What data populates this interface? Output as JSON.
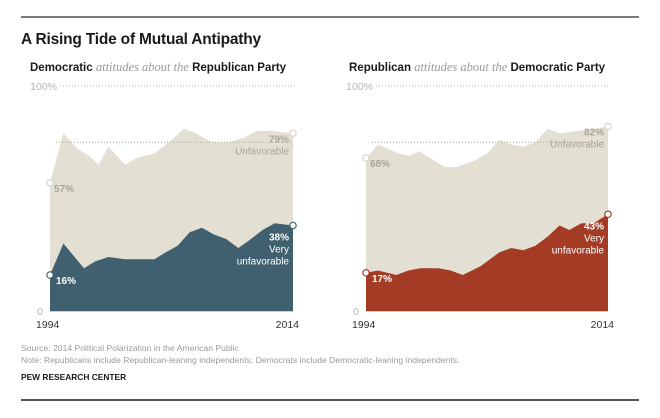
{
  "title": "A Rising Tide of Mutual Antipathy",
  "charts": [
    {
      "subtitle_a": "Democratic",
      "subtitle_mid": "attitudes about the",
      "subtitle_b": "Republican Party"
    },
    {
      "subtitle_a": "Republican",
      "subtitle_mid": "attitudes about the",
      "subtitle_b": "Democratic Party"
    }
  ],
  "footer": {
    "source": "Source: 2014 Political Polarization in the American Public",
    "note": "Note: Republicans include Republican-leaning independents; Democrats include Democratic-leaning independents.",
    "brand": "PEW RESEARCH CENTER"
  },
  "chart_data": [
    {
      "type": "area",
      "title": "Democratic attitudes about the Republican Party",
      "xlabel": "",
      "ylabel": "",
      "xlim": [
        1994,
        2014
      ],
      "ylim": [
        0,
        100
      ],
      "x_tick_labels": [
        "1994",
        "2014"
      ],
      "y_tick_labels": [
        "0",
        "100%"
      ],
      "reference_line": 75,
      "colors": {
        "unfavorable": "#e3dfd3",
        "very_unfavorable": "#40606f"
      },
      "series": [
        {
          "name": "Unfavorable",
          "x": [
            1994.0,
            1995.1,
            1996.3,
            1997.2,
            1998.0,
            1998.8,
            2000.2,
            2001.1,
            2002.6,
            2004.0,
            2005.0,
            2006.0,
            2007.3,
            2008.7,
            2010.0,
            2011.0,
            2012.3,
            2014.0
          ],
          "values": [
            57,
            79,
            72,
            69,
            65,
            73,
            65,
            68,
            70,
            76,
            81,
            79,
            75,
            75,
            77,
            80,
            80,
            79
          ],
          "start_label": "57%",
          "end_label": "79%",
          "end_caption": "Unfavorable"
        },
        {
          "name": "Very unfavorable",
          "x": [
            1994.0,
            1995.1,
            1996.8,
            1997.7,
            1998.8,
            2000.2,
            2001.2,
            2002.6,
            2003.5,
            2004.5,
            2005.5,
            2006.5,
            2007.5,
            2008.5,
            2009.5,
            2010.3,
            2011.5,
            2012.5,
            2014.0
          ],
          "values": [
            16,
            30,
            19,
            22,
            24,
            23,
            23,
            23,
            26,
            29,
            35,
            37,
            34,
            32,
            28,
            31,
            36,
            39,
            38
          ],
          "start_label": "16%",
          "end_label": "38%",
          "end_caption": [
            "Very",
            "unfavorable"
          ]
        }
      ]
    },
    {
      "type": "area",
      "title": "Republican attitudes about the Democratic Party",
      "xlabel": "",
      "ylabel": "",
      "xlim": [
        1994,
        2014
      ],
      "ylim": [
        0,
        100
      ],
      "x_tick_labels": [
        "1994",
        "2014"
      ],
      "y_tick_labels": [
        "0",
        "100%"
      ],
      "reference_line": 75,
      "colors": {
        "unfavorable": "#e3dfd3",
        "very_unfavorable": "#a33b25"
      },
      "series": [
        {
          "name": "Unfavorable",
          "x": [
            1994.0,
            1995.0,
            1996.7,
            1997.6,
            1998.4,
            2000.5,
            2001.5,
            2003.0,
            2004.0,
            2005.0,
            2006.0,
            2007.0,
            2008.0,
            2009.0,
            2010.0,
            2011.5,
            2013.0,
            2014.0
          ],
          "values": [
            68,
            74,
            70,
            69,
            71,
            64,
            64,
            67,
            70,
            76,
            74,
            73,
            75,
            81,
            79,
            80,
            81,
            82
          ],
          "start_label": "68%",
          "end_label": "82%",
          "end_caption": "Unfavorable"
        },
        {
          "name": "Very unfavorable",
          "x": [
            1994.0,
            1995.0,
            1996.5,
            1997.5,
            1998.5,
            2000.0,
            2001.0,
            2002.0,
            2003.5,
            2005.0,
            2006.0,
            2007.0,
            2008.0,
            2009.0,
            2010.0,
            2010.8,
            2011.8,
            2012.8,
            2014.0
          ],
          "values": [
            17,
            18,
            16,
            18,
            19,
            19,
            18,
            16,
            20,
            26,
            28,
            27,
            29,
            33,
            38,
            36,
            39,
            39,
            43
          ],
          "start_label": "17%",
          "end_label": "43%",
          "end_caption": [
            "Very",
            "unfavorable"
          ]
        }
      ]
    }
  ]
}
